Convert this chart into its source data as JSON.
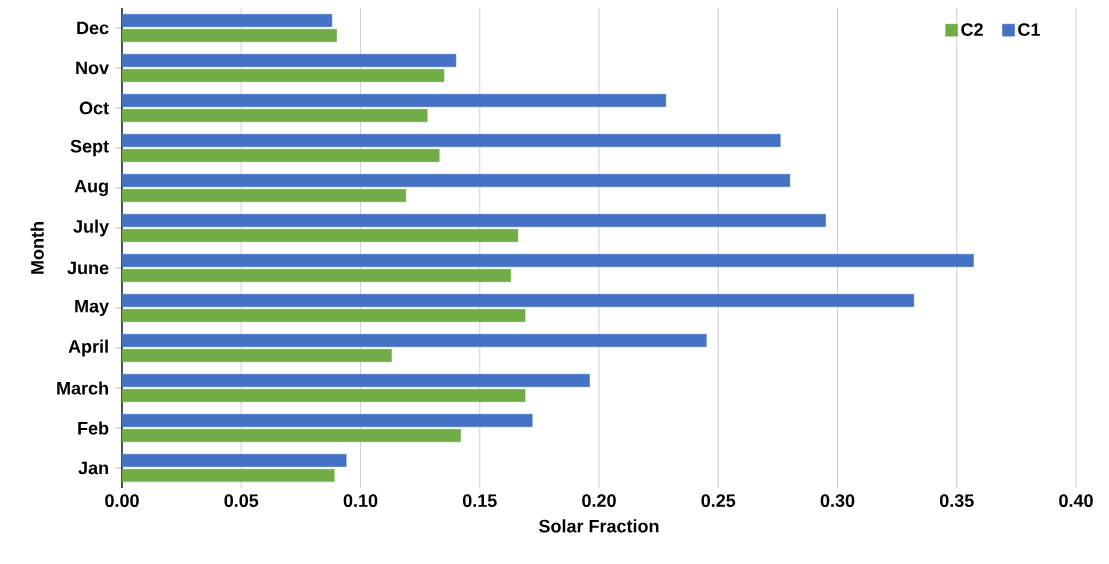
{
  "chart_data": {
    "type": "bar",
    "orientation": "horizontal",
    "xlabel": "Solar Fraction",
    "ylabel": "Month",
    "categories": [
      "Dec",
      "Nov",
      "Oct",
      "Sept",
      "Aug",
      "July",
      "June",
      "May",
      "April",
      "March",
      "Feb",
      "Jan"
    ],
    "series": [
      {
        "name": "C2",
        "color": "#70ad47",
        "values": [
          0.09,
          0.135,
          0.128,
          0.133,
          0.119,
          0.166,
          0.163,
          0.169,
          0.113,
          0.169,
          0.142,
          0.089
        ]
      },
      {
        "name": "C1",
        "color": "#4472c4",
        "values": [
          0.088,
          0.14,
          0.228,
          0.276,
          0.28,
          0.295,
          0.357,
          0.332,
          0.245,
          0.196,
          0.172,
          0.094
        ]
      }
    ],
    "xlim": [
      0,
      0.4
    ],
    "xticks": [
      {
        "value": 0,
        "label": "0.00"
      },
      {
        "value": 0.05,
        "label": "0.05"
      },
      {
        "value": 0.1,
        "label": "0.10"
      },
      {
        "value": 0.15,
        "label": "0.15"
      },
      {
        "value": 0.2,
        "label": "0.20"
      },
      {
        "value": 0.25,
        "label": "0.25"
      },
      {
        "value": 0.3,
        "label": "0.30"
      },
      {
        "value": 0.35,
        "label": "0.35"
      },
      {
        "value": 0.4,
        "label": "0.40"
      }
    ],
    "grid": "x",
    "legend": "top right"
  }
}
